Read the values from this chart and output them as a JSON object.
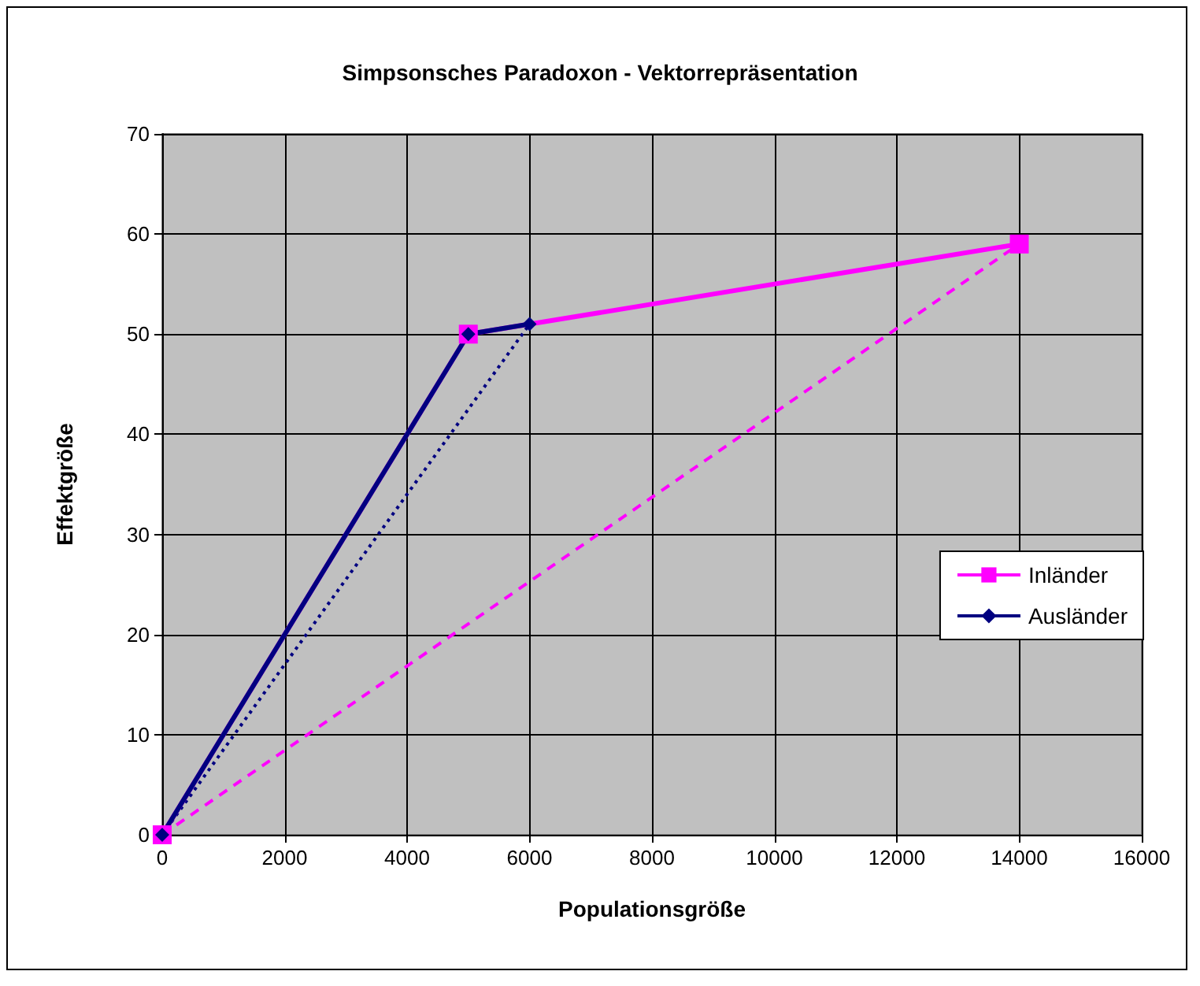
{
  "chart_data": {
    "type": "line",
    "title": "Simpsonsches Paradoxon - Vektorrepräsentation",
    "xlabel": "Populationsgröße",
    "ylabel": "Effektgröße",
    "series": [
      {
        "name": "Inländer",
        "color": "#ff00ff",
        "x": [
          0,
          5000,
          14000
        ],
        "values": [
          0,
          50,
          59
        ],
        "marker": "square",
        "line_style": "solid"
      },
      {
        "name": "Ausländer",
        "color": "#000080",
        "x": [
          0,
          5000,
          6000
        ],
        "values": [
          0,
          50,
          51
        ],
        "marker": "diamond",
        "line_style": "solid"
      },
      {
        "color": "#ff00ff",
        "x": [
          0,
          14000
        ],
        "values": [
          0,
          59
        ],
        "marker": "none",
        "line_style": "dashed"
      },
      {
        "color": "#000080",
        "x": [
          0,
          6000
        ],
        "values": [
          0,
          51
        ],
        "marker": "none",
        "line_style": "dotted"
      }
    ],
    "xlim": [
      0,
      16000
    ],
    "xticks": [
      0,
      2000,
      4000,
      6000,
      8000,
      10000,
      12000,
      14000,
      16000
    ],
    "ylim": [
      0,
      70
    ],
    "yticks": [
      0,
      10,
      20,
      30,
      40,
      50,
      60,
      70
    ],
    "grid": true,
    "legend": "right"
  }
}
